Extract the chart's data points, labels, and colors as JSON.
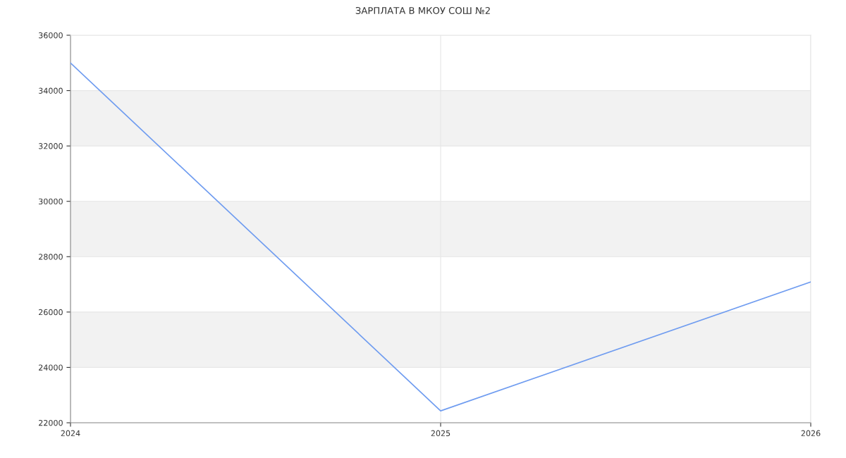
{
  "chart_data": {
    "type": "line",
    "title": "ЗАРПЛАТА В МКОУ СОШ №2",
    "x": [
      2024,
      2025,
      2026
    ],
    "series": [
      {
        "color": "#6f9cf0",
        "values": [
          35000,
          22430,
          27090
        ]
      }
    ],
    "xlim": [
      2024,
      2026
    ],
    "xticks": [
      2024,
      2025,
      2026
    ],
    "ylim": [
      22000,
      36000
    ],
    "yticks": [
      22000,
      24000,
      26000,
      28000,
      30000,
      32000,
      34000,
      36000
    ],
    "bands": [
      {
        "axis": "y",
        "from": 24000,
        "to": 26000,
        "color": "#f2f2f2"
      },
      {
        "axis": "y",
        "from": 28000,
        "to": 30000,
        "color": "#f2f2f2"
      },
      {
        "axis": "y",
        "from": 32000,
        "to": 34000,
        "color": "#f2f2f2"
      }
    ],
    "grid": true,
    "legend": false,
    "marker": "none",
    "line_style": "solid"
  }
}
